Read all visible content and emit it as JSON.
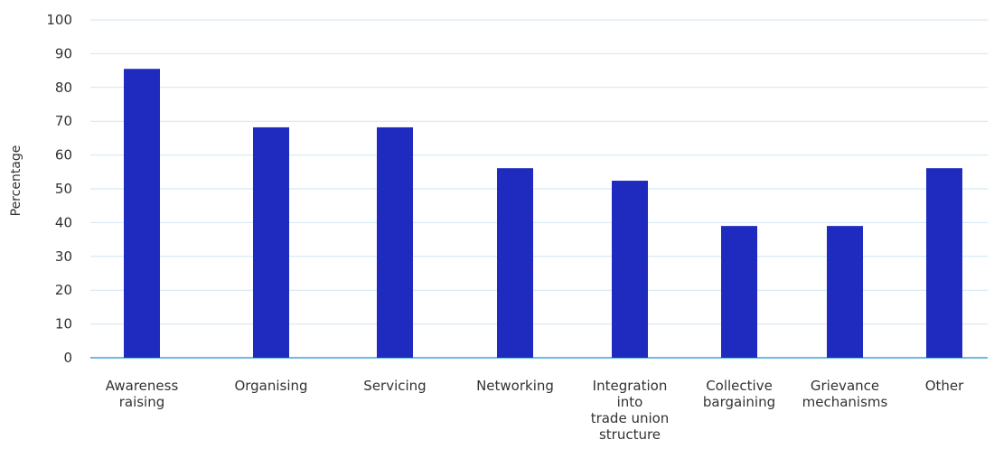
{
  "chart_data": {
    "type": "bar",
    "categories": [
      [
        "Awareness",
        "raising"
      ],
      [
        "Organising"
      ],
      [
        "Servicing"
      ],
      [
        "Networking"
      ],
      [
        "Integration",
        "into",
        "trade union",
        "structure"
      ],
      [
        "Collective",
        "bargaining"
      ],
      [
        "Grievance",
        "mechanisms"
      ],
      [
        "Other"
      ]
    ],
    "values": [
      85.5,
      68.2,
      68.2,
      56.1,
      52.4,
      39.0,
      39.0,
      56.1
    ],
    "ylabel": "Percentage",
    "xlabel": "",
    "ylim": [
      0,
      100
    ],
    "yticks": [
      0,
      10,
      20,
      30,
      40,
      50,
      60,
      70,
      80,
      90,
      100
    ],
    "grid": true,
    "colors": {
      "bar": "#1f2bbf",
      "grid": "#cfe6f2",
      "axis": "#3aa6d8"
    }
  }
}
